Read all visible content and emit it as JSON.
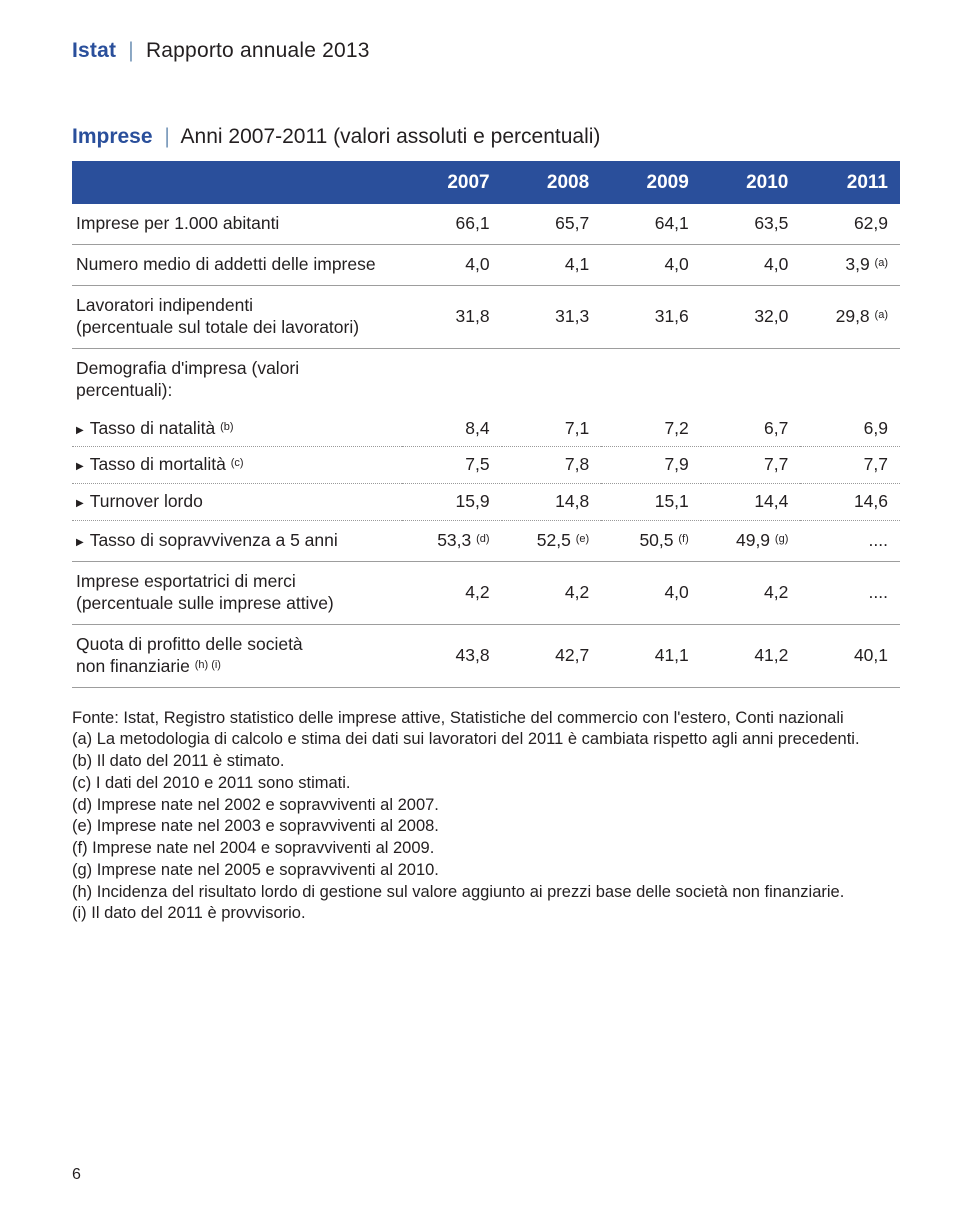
{
  "header": {
    "brand": "Istat",
    "separator": "|",
    "subtitle": "Rapporto annuale 2013"
  },
  "table_title": {
    "word": "Imprese",
    "separator": "|",
    "subtitle": "Anni 2007-2011 (valori assoluti e percentuali)"
  },
  "colors": {
    "brand_blue": "#2a4f9b",
    "sep_blue": "#7a9abb",
    "text": "#231f20",
    "rule": "#9d9d9d",
    "dotted": "#9a9a9a",
    "background": "#ffffff",
    "header_bg": "#2a4f9b",
    "header_fg": "#ffffff"
  },
  "columns": [
    "2007",
    "2008",
    "2009",
    "2010",
    "2011"
  ],
  "rows": {
    "imprese_abitanti": {
      "label": "Imprese per 1.000 abitanti",
      "v": [
        "66,1",
        "65,7",
        "64,1",
        "63,5",
        "62,9"
      ]
    },
    "addetti": {
      "label": "Numero medio di addetti delle imprese",
      "v": [
        "4,0",
        "4,1",
        "4,0",
        "4,0",
        "3,9 "
      ],
      "v_sup": [
        "",
        "",
        "",
        "",
        "(a)"
      ]
    },
    "lav_indip": {
      "label": "Lavoratori indipendenti",
      "sublabel": "(percentuale sul totale dei lavoratori)",
      "v": [
        "31,8",
        "31,3",
        "31,6",
        "32,0",
        "29,8 "
      ],
      "v_sup": [
        "",
        "",
        "",
        "",
        "(a)"
      ]
    },
    "demografia": {
      "label": "Demografia d'impresa (valori percentuali):"
    },
    "natalita": {
      "label": "Tasso di natalità ",
      "sup": "(b)",
      "v": [
        "8,4",
        "7,1",
        "7,2",
        "6,7",
        "6,9"
      ]
    },
    "mortalita": {
      "label": "Tasso di mortalità ",
      "sup": "(c)",
      "v": [
        "7,5",
        "7,8",
        "7,9",
        "7,7",
        "7,7"
      ]
    },
    "turnover": {
      "label": "Turnover lordo",
      "v": [
        "15,9",
        "14,8",
        "15,1",
        "14,4",
        "14,6"
      ]
    },
    "sopravv": {
      "label": "Tasso di sopravvivenza a 5 anni",
      "v": [
        "53,3 ",
        "52,5 ",
        "50,5 ",
        "49,9 ",
        "...."
      ],
      "v_sup": [
        "(d)",
        "(e)",
        "(f)",
        "(g)",
        ""
      ]
    },
    "esport": {
      "label": "Imprese esportatrici di merci",
      "sublabel": "(percentuale sulle imprese attive)",
      "v": [
        "4,2",
        "4,2",
        "4,0",
        "4,2",
        "...."
      ]
    },
    "quota": {
      "label": "Quota di profitto delle società",
      "sublabel": "non finanziarie ",
      "sub_sup": "(h) (i)",
      "v": [
        "43,8",
        "42,7",
        "41,1",
        "41,2",
        "40,1"
      ]
    }
  },
  "notes": [
    "Fonte: Istat, Registro statistico delle imprese attive, Statistiche del commercio con l'estero, Conti nazionali",
    "(a) La metodologia di calcolo e stima dei dati sui lavoratori del 2011 è cambiata rispetto agli anni precedenti.",
    "(b) Il dato del 2011 è stimato.",
    "(c) I dati del 2010 e 2011 sono stimati.",
    "(d) Imprese nate nel 2002 e sopravviventi al 2007.",
    "(e) Imprese nate nel 2003 e sopravviventi al 2008.",
    "(f) Imprese nate nel 2004 e sopravviventi al 2009.",
    "(g) Imprese nate nel 2005 e sopravviventi al 2010.",
    "(h) Incidenza del risultato lordo di gestione sul valore aggiunto ai prezzi base delle società non finanziarie.",
    "(i) Il dato del 2011 è provvisorio."
  ],
  "page_number": "6"
}
